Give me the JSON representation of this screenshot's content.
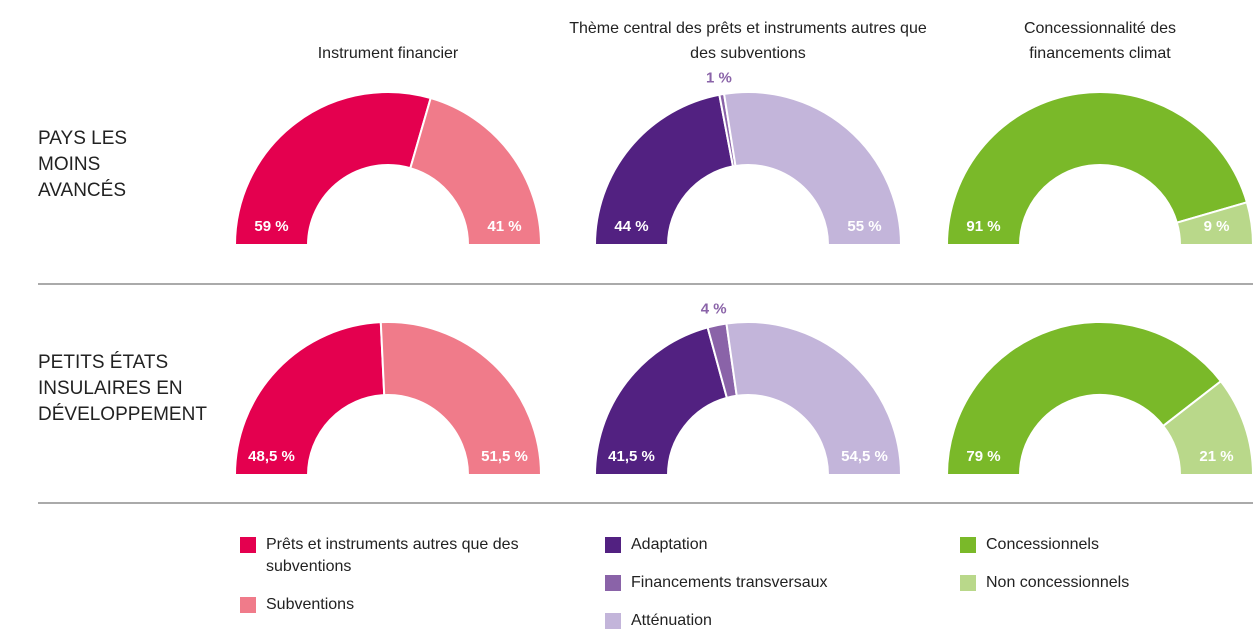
{
  "column_titles": [
    "Instrument financier",
    "Thème central des prêts et instruments autres que des subventions",
    "Concessionnalité des financements climat"
  ],
  "row_labels": [
    "PAYS LES MOINS AVANCÉS",
    "PETITS ÉTATS INSULAIRES EN DÉVELOPPEMENT"
  ],
  "chart_data": [
    {
      "type": "pie",
      "categories": [
        "Prêts et instruments autres que des subventions",
        "Subventions"
      ],
      "values": [
        59,
        41
      ],
      "value_labels": [
        "59 %",
        "41 %"
      ],
      "colors": [
        "#e4004f",
        "#f07b8a"
      ]
    },
    {
      "type": "pie",
      "categories": [
        "Adaptation",
        "Financements transversaux",
        "Atténuation"
      ],
      "values": [
        44,
        1,
        55
      ],
      "value_labels": [
        "44 %",
        "1 %",
        "55 %"
      ],
      "colors": [
        "#522181",
        "#8a63a8",
        "#c3b5da"
      ]
    },
    {
      "type": "pie",
      "categories": [
        "Concessionnels",
        "Non concessionnels"
      ],
      "values": [
        91,
        9
      ],
      "value_labels": [
        "91 %",
        "9 %"
      ],
      "colors": [
        "#7ab929",
        "#b9d88a"
      ]
    },
    {
      "type": "pie",
      "categories": [
        "Prêts et instruments autres que des subventions",
        "Subventions"
      ],
      "values": [
        48.5,
        51.5
      ],
      "value_labels": [
        "48,5 %",
        "51,5 %"
      ],
      "colors": [
        "#e4004f",
        "#f07b8a"
      ]
    },
    {
      "type": "pie",
      "categories": [
        "Adaptation",
        "Financements transversaux",
        "Atténuation"
      ],
      "values": [
        41.5,
        4,
        54.5
      ],
      "value_labels": [
        "41,5 %",
        "4 %",
        "54,5 %"
      ],
      "colors": [
        "#522181",
        "#8a63a8",
        "#c3b5da"
      ]
    },
    {
      "type": "pie",
      "categories": [
        "Concessionnels",
        "Non concessionnels"
      ],
      "values": [
        79,
        21
      ],
      "value_labels": [
        "79 %",
        "21 %"
      ],
      "colors": [
        "#7ab929",
        "#b9d88a"
      ]
    }
  ]
}
